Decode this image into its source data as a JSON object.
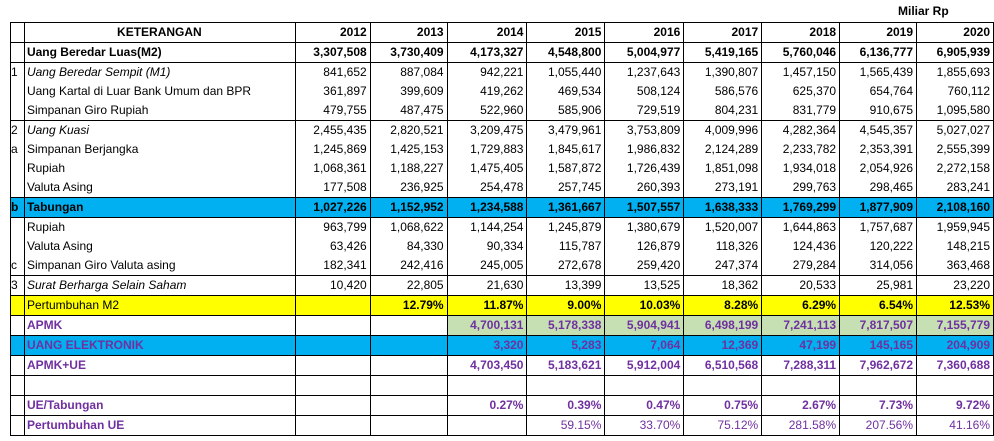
{
  "unit_label": "Miliar Rp",
  "header": {
    "label": "KETERANGAN",
    "years": [
      "2012",
      "2013",
      "2014",
      "2015",
      "2016",
      "2017",
      "2018",
      "2019",
      "2020"
    ]
  },
  "rows": [
    {
      "idx": "",
      "label": "Uang Beredar Luas(M2)",
      "values": [
        "3,307,508",
        "3,730,409",
        "4,173,327",
        "4,548,800",
        "5,004,977",
        "5,419,165",
        "5,760,046",
        "6,136,777",
        "6,905,939"
      ]
    },
    {
      "idx": "1",
      "label": "Uang Beredar Sempit (M1)",
      "values": [
        "841,652",
        "887,084",
        "942,221",
        "1,055,440",
        "1,237,643",
        "1,390,807",
        "1,457,150",
        "1,565,439",
        "1,855,693"
      ]
    },
    {
      "idx": "",
      "label": "Uang Kartal di Luar Bank Umum dan BPR",
      "values": [
        "361,897",
        "399,609",
        "419,262",
        "469,534",
        "508,124",
        "586,576",
        "625,370",
        "654,764",
        "760,112"
      ]
    },
    {
      "idx": "",
      "label": "Simpanan Giro Rupiah",
      "values": [
        "479,755",
        "487,475",
        "522,960",
        "585,906",
        "729,519",
        "804,231",
        "831,779",
        "910,675",
        "1,095,580"
      ]
    },
    {
      "idx": "2",
      "label": "Uang Kuasi",
      "values": [
        "2,455,435",
        "2,820,521",
        "3,209,475",
        "3,479,961",
        "3,753,809",
        "4,009,996",
        "4,282,364",
        "4,545,357",
        "5,027,027"
      ]
    },
    {
      "idx": "a",
      "label": "Simpanan Berjangka",
      "values": [
        "1,245,869",
        "1,425,153",
        "1,729,883",
        "1,845,617",
        "1,986,832",
        "2,124,289",
        "2,233,782",
        "2,353,391",
        "2,555,399"
      ]
    },
    {
      "idx": "",
      "label": "Rupiah",
      "values": [
        "1,068,361",
        "1,188,227",
        "1,475,405",
        "1,587,872",
        "1,726,439",
        "1,851,098",
        "1,934,018",
        "2,054,926",
        "2,272,158"
      ]
    },
    {
      "idx": "",
      "label": "Valuta Asing",
      "values": [
        "177,508",
        "236,925",
        "254,478",
        "257,745",
        "260,393",
        "273,191",
        "299,763",
        "298,465",
        "283,241"
      ]
    },
    {
      "idx": "b",
      "label": "Tabungan",
      "values": [
        "1,027,226",
        "1,152,952",
        "1,234,588",
        "1,361,667",
        "1,507,557",
        "1,638,333",
        "1,769,299",
        "1,877,909",
        "2,108,160"
      ]
    },
    {
      "idx": "",
      "label": "Rupiah",
      "values": [
        "963,799",
        "1,068,622",
        "1,144,254",
        "1,245,879",
        "1,380,679",
        "1,520,007",
        "1,644,863",
        "1,757,687",
        "1,959,945"
      ]
    },
    {
      "idx": "",
      "label": "Valuta Asing",
      "values": [
        "63,426",
        "84,330",
        "90,334",
        "115,787",
        "126,879",
        "118,326",
        "124,436",
        "120,222",
        "148,215"
      ]
    },
    {
      "idx": "c",
      "label": "Simpanan Giro Valuta asing",
      "values": [
        "182,341",
        "242,416",
        "245,005",
        "272,678",
        "259,420",
        "247,374",
        "279,284",
        "314,056",
        "363,468"
      ]
    },
    {
      "idx": "3",
      "label": "Surat Berharga Selain Saham",
      "values": [
        "10,420",
        "22,805",
        "21,630",
        "13,399",
        "13,525",
        "18,362",
        "20,533",
        "25,981",
        "23,220"
      ]
    },
    {
      "idx": "",
      "label": "Pertumbuhan M2",
      "values": [
        "",
        "12.79%",
        "11.87%",
        "9.00%",
        "10.03%",
        "8.28%",
        "6.29%",
        "6.54%",
        "12.53%"
      ]
    },
    {
      "idx": "",
      "label": "APMK",
      "values": [
        "",
        "",
        "4,700,131",
        "5,178,338",
        "5,904,941",
        "6,498,199",
        "7,241,113",
        "7,817,507",
        "7,155,779"
      ]
    },
    {
      "idx": "",
      "label": "UANG ELEKTRONIK",
      "values": [
        "",
        "",
        "3,320",
        "5,283",
        "7,064",
        "12,369",
        "47,199",
        "145,165",
        "204,909"
      ]
    },
    {
      "idx": "",
      "label": "APMK+UE",
      "values": [
        "",
        "",
        "4,703,450",
        "5,183,621",
        "5,912,004",
        "6,510,568",
        "7,288,311",
        "7,962,672",
        "7,360,688"
      ]
    },
    {
      "idx": "",
      "label": "UE/Tabungan",
      "values": [
        "",
        "",
        "0.27%",
        "0.39%",
        "0.47%",
        "0.75%",
        "2.67%",
        "7.73%",
        "9.72%"
      ]
    },
    {
      "idx": "",
      "label": "Pertumbuhan UE",
      "values": [
        "",
        "",
        "",
        "59.15%",
        "33.70%",
        "75.12%",
        "281.58%",
        "207.56%",
        "41.16%"
      ]
    }
  ],
  "colors": {
    "tabungan_highlight": "#00b0f0",
    "growth_highlight": "#ffff00",
    "apmk_fill": "#c6e0b4",
    "purple_text": "#7030a0"
  }
}
